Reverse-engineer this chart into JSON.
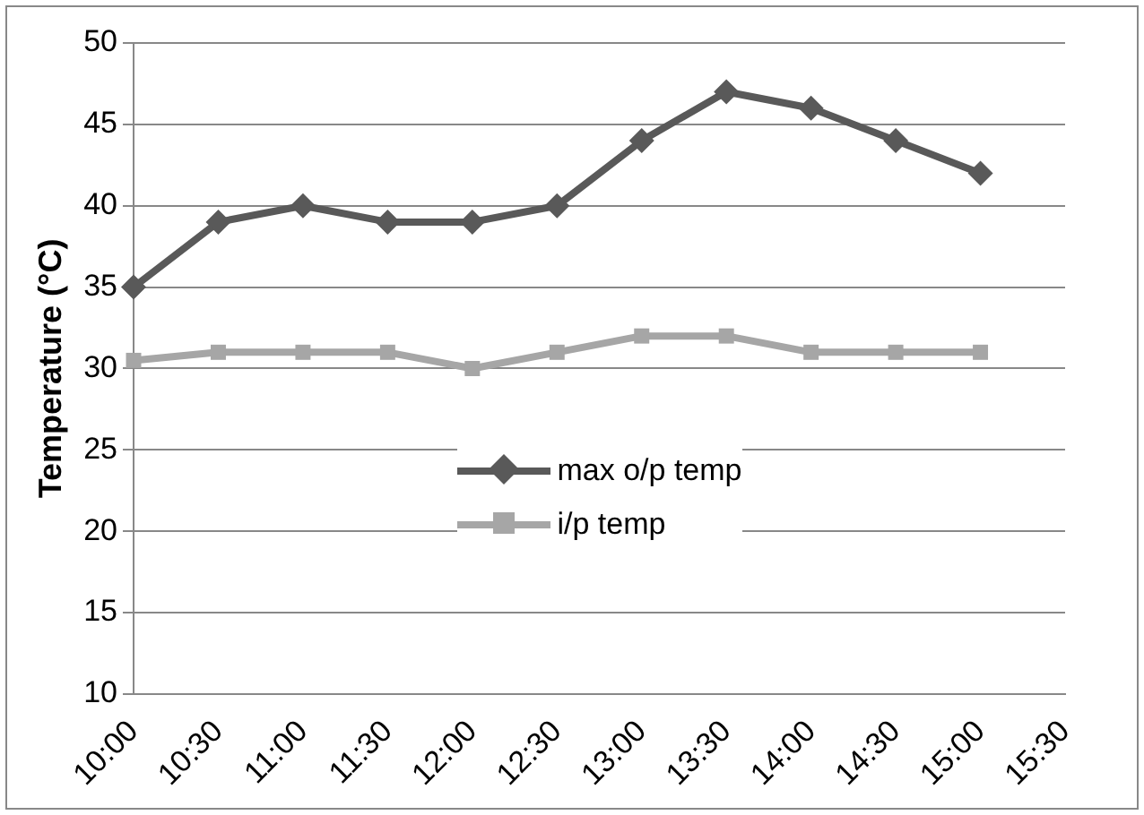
{
  "chart_data": {
    "type": "line",
    "ylabel": "Temperature (°C)",
    "categories": [
      "10:00",
      "10:30",
      "11:00",
      "11:30",
      "12:00",
      "12:30",
      "13:00",
      "13:30",
      "14:00",
      "14:30",
      "15:00",
      "15:30"
    ],
    "series": [
      {
        "name": "max o/p temp",
        "color": "#595959",
        "marker": "diamond",
        "values": [
          35,
          39,
          40,
          39,
          39,
          40,
          44,
          47,
          46,
          44,
          42,
          null
        ]
      },
      {
        "name": "i/p temp",
        "color": "#a6a6a6",
        "marker": "square",
        "values": [
          30.5,
          31,
          31,
          31,
          30,
          31,
          32,
          32,
          31,
          31,
          31,
          null
        ]
      }
    ],
    "ylim": [
      10,
      50
    ],
    "yticks": [
      10,
      15,
      20,
      25,
      30,
      35,
      40,
      45,
      50
    ],
    "grid": "y",
    "legend": "center"
  }
}
